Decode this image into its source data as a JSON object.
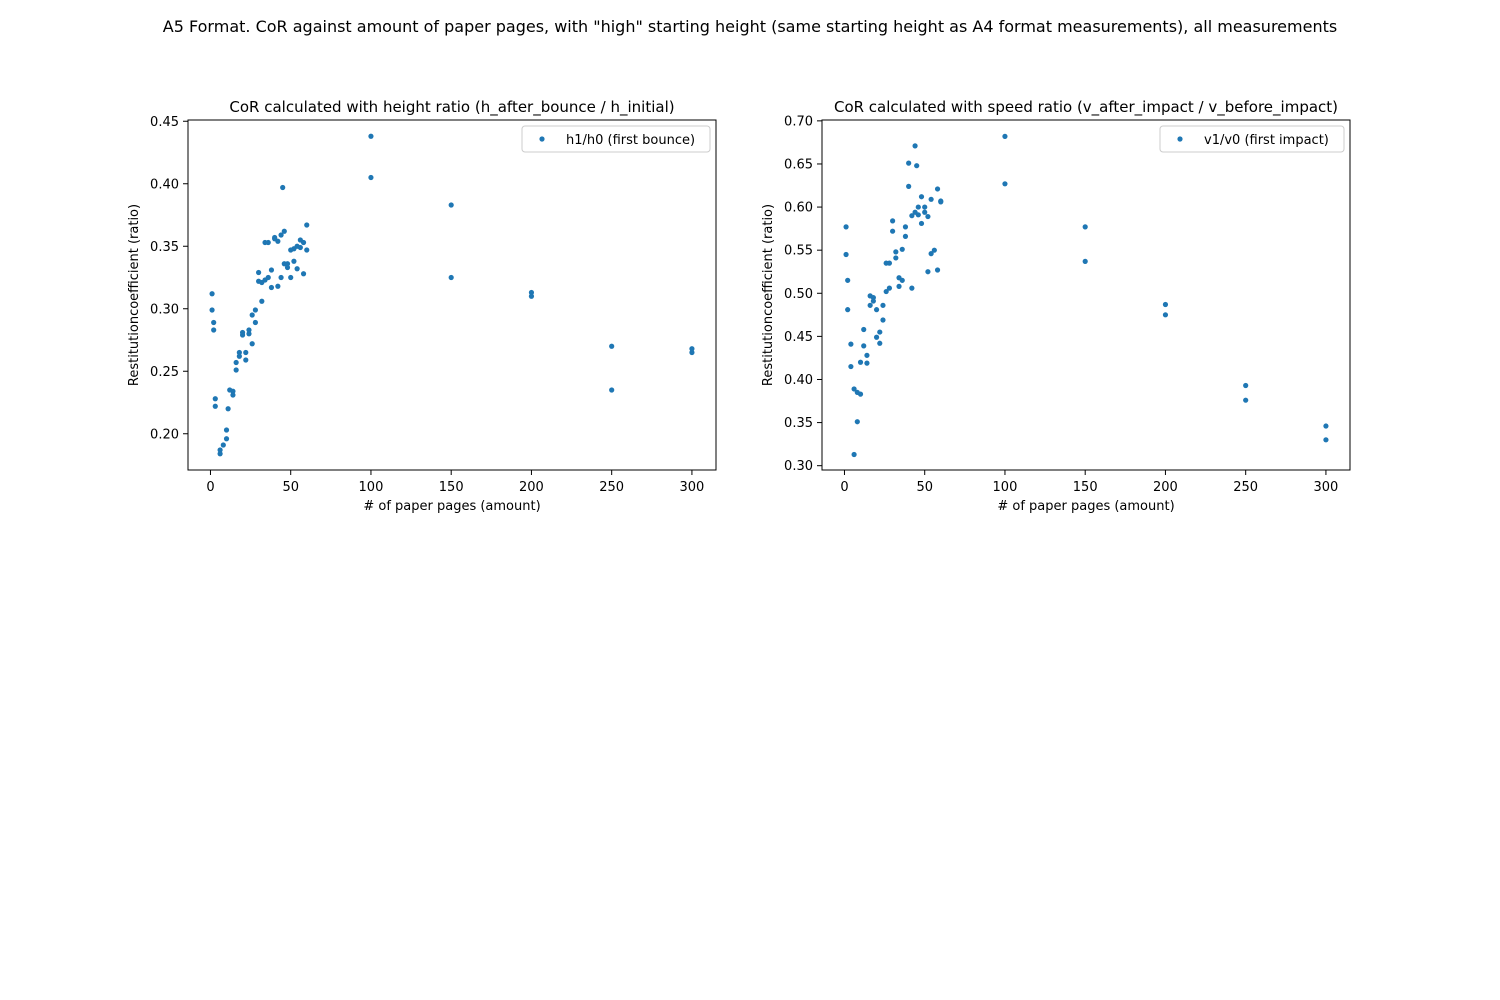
{
  "figure": {
    "suptitle": "A5 Format. CoR against amount of paper pages, with \"high\" starting height (same starting height as A4 format measurements), all measurements"
  },
  "chart_data": [
    {
      "type": "scatter",
      "title": "CoR calculated with height ratio (h_after_bounce / h_initial)",
      "xlabel": "# of paper pages (amount)",
      "ylabel": "Restitutioncoefficient (ratio)",
      "xlim": [
        -14,
        315
      ],
      "ylim": [
        0.171,
        0.451
      ],
      "xticks": [
        0,
        50,
        100,
        150,
        200,
        250,
        300
      ],
      "yticks": [
        0.2,
        0.25,
        0.3,
        0.35,
        0.4,
        0.45
      ],
      "ytick_labels": [
        "0.20",
        "0.25",
        "0.30",
        "0.35",
        "0.40",
        "0.45"
      ],
      "grid": false,
      "legend_position": "top-right",
      "color": "#1f77b4",
      "series": [
        {
          "name": "h1/h0 (first bounce)",
          "points": [
            [
              1,
              0.312
            ],
            [
              1,
              0.299
            ],
            [
              2,
              0.289
            ],
            [
              2,
              0.283
            ],
            [
              3,
              0.228
            ],
            [
              3,
              0.222
            ],
            [
              6,
              0.187
            ],
            [
              6,
              0.184
            ],
            [
              8,
              0.191
            ],
            [
              10,
              0.196
            ],
            [
              10,
              0.203
            ],
            [
              11,
              0.22
            ],
            [
              12,
              0.235
            ],
            [
              14,
              0.234
            ],
            [
              14,
              0.231
            ],
            [
              16,
              0.257
            ],
            [
              16,
              0.251
            ],
            [
              18,
              0.265
            ],
            [
              18,
              0.262
            ],
            [
              20,
              0.281
            ],
            [
              20,
              0.279
            ],
            [
              22,
              0.265
            ],
            [
              22,
              0.259
            ],
            [
              24,
              0.283
            ],
            [
              24,
              0.28
            ],
            [
              26,
              0.272
            ],
            [
              26,
              0.295
            ],
            [
              28,
              0.299
            ],
            [
              28,
              0.289
            ],
            [
              30,
              0.329
            ],
            [
              30,
              0.322
            ],
            [
              32,
              0.306
            ],
            [
              32,
              0.321
            ],
            [
              34,
              0.353
            ],
            [
              34,
              0.323
            ],
            [
              36,
              0.353
            ],
            [
              36,
              0.325
            ],
            [
              38,
              0.331
            ],
            [
              38,
              0.317
            ],
            [
              40,
              0.357
            ],
            [
              40,
              0.356
            ],
            [
              42,
              0.354
            ],
            [
              42,
              0.318
            ],
            [
              44,
              0.359
            ],
            [
              44,
              0.325
            ],
            [
              45,
              0.397
            ],
            [
              46,
              0.362
            ],
            [
              46,
              0.336
            ],
            [
              48,
              0.336
            ],
            [
              48,
              0.333
            ],
            [
              50,
              0.347
            ],
            [
              50,
              0.325
            ],
            [
              52,
              0.348
            ],
            [
              52,
              0.338
            ],
            [
              54,
              0.35
            ],
            [
              54,
              0.332
            ],
            [
              56,
              0.355
            ],
            [
              56,
              0.349
            ],
            [
              58,
              0.353
            ],
            [
              58,
              0.328
            ],
            [
              60,
              0.367
            ],
            [
              60,
              0.347
            ],
            [
              100,
              0.438
            ],
            [
              100,
              0.405
            ],
            [
              150,
              0.383
            ],
            [
              150,
              0.325
            ],
            [
              200,
              0.313
            ],
            [
              200,
              0.31
            ],
            [
              250,
              0.27
            ],
            [
              250,
              0.235
            ],
            [
              300,
              0.268
            ],
            [
              300,
              0.265
            ]
          ]
        }
      ]
    },
    {
      "type": "scatter",
      "title": "CoR calculated with speed ratio (v_after_impact / v_before_impact)",
      "xlabel": "# of paper pages (amount)",
      "ylabel": "Restitutioncoefficient (ratio)",
      "xlim": [
        -14,
        315
      ],
      "ylim": [
        0.295,
        0.701
      ],
      "xticks": [
        0,
        50,
        100,
        150,
        200,
        250,
        300
      ],
      "yticks": [
        0.3,
        0.35,
        0.4,
        0.45,
        0.5,
        0.55,
        0.6,
        0.65,
        0.7
      ],
      "ytick_labels": [
        "0.30",
        "0.35",
        "0.40",
        "0.45",
        "0.50",
        "0.55",
        "0.60",
        "0.65",
        "0.70"
      ],
      "grid": false,
      "legend_position": "top-right",
      "color": "#1f77b4",
      "series": [
        {
          "name": "v1/v0 (first impact)",
          "points": [
            [
              1,
              0.577
            ],
            [
              1,
              0.545
            ],
            [
              2,
              0.515
            ],
            [
              2,
              0.481
            ],
            [
              4,
              0.441
            ],
            [
              4,
              0.415
            ],
            [
              6,
              0.389
            ],
            [
              6,
              0.313
            ],
            [
              8,
              0.385
            ],
            [
              8,
              0.351
            ],
            [
              10,
              0.42
            ],
            [
              10,
              0.383
            ],
            [
              12,
              0.458
            ],
            [
              12,
              0.439
            ],
            [
              14,
              0.428
            ],
            [
              14,
              0.419
            ],
            [
              16,
              0.497
            ],
            [
              16,
              0.486
            ],
            [
              18,
              0.495
            ],
            [
              18,
              0.491
            ],
            [
              20,
              0.481
            ],
            [
              20,
              0.449
            ],
            [
              22,
              0.455
            ],
            [
              22,
              0.442
            ],
            [
              24,
              0.486
            ],
            [
              24,
              0.469
            ],
            [
              26,
              0.535
            ],
            [
              26,
              0.502
            ],
            [
              28,
              0.535
            ],
            [
              28,
              0.506
            ],
            [
              30,
              0.584
            ],
            [
              30,
              0.572
            ],
            [
              32,
              0.548
            ],
            [
              32,
              0.541
            ],
            [
              34,
              0.518
            ],
            [
              34,
              0.508
            ],
            [
              36,
              0.551
            ],
            [
              36,
              0.515
            ],
            [
              38,
              0.577
            ],
            [
              38,
              0.566
            ],
            [
              40,
              0.651
            ],
            [
              40,
              0.624
            ],
            [
              42,
              0.59
            ],
            [
              42,
              0.506
            ],
            [
              44,
              0.671
            ],
            [
              44,
              0.594
            ],
            [
              45,
              0.648
            ],
            [
              46,
              0.6
            ],
            [
              46,
              0.591
            ],
            [
              48,
              0.612
            ],
            [
              48,
              0.581
            ],
            [
              50,
              0.6
            ],
            [
              50,
              0.594
            ],
            [
              52,
              0.589
            ],
            [
              52,
              0.525
            ],
            [
              54,
              0.609
            ],
            [
              54,
              0.546
            ],
            [
              56,
              0.55
            ],
            [
              58,
              0.621
            ],
            [
              58,
              0.527
            ],
            [
              60,
              0.607
            ],
            [
              60,
              0.606
            ],
            [
              100,
              0.682
            ],
            [
              100,
              0.627
            ],
            [
              150,
              0.577
            ],
            [
              150,
              0.537
            ],
            [
              200,
              0.487
            ],
            [
              200,
              0.475
            ],
            [
              250,
              0.393
            ],
            [
              250,
              0.376
            ],
            [
              300,
              0.346
            ],
            [
              300,
              0.33
            ]
          ]
        }
      ]
    }
  ]
}
